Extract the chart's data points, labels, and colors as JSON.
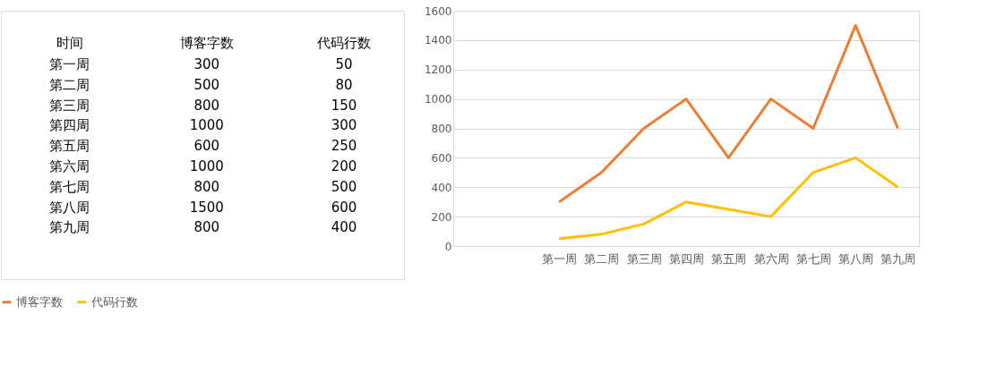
{
  "chart_data": [
    {
      "type": "other",
      "annotations": [
        "时间"
      ],
      "categories": [
        "第一周",
        "第二周",
        "第三周",
        "第四周",
        "第五周",
        "第六周",
        "第七周",
        "第八周",
        "第九周"
      ],
      "series": [
        {
          "name": "博客字数",
          "values": [
            300,
            500,
            800,
            1000,
            600,
            1000,
            800,
            1500,
            800
          ]
        },
        {
          "name": "代码行数",
          "values": [
            50,
            80,
            150,
            300,
            250,
            200,
            500,
            600,
            400
          ]
        }
      ],
      "data_labels": true
    },
    {
      "type": "line",
      "categories": [
        null,
        null,
        "第一周",
        "第二周",
        "第三周",
        "第四周",
        "第五周",
        "第六周",
        "第七周",
        "第八周",
        "第九周"
      ],
      "series": [
        {
          "name": "博客字数",
          "color": "#ed7d31",
          "values": [
            null,
            null,
            300,
            500,
            800,
            1000,
            600,
            1000,
            800,
            1500,
            800
          ]
        },
        {
          "name": "代码行数",
          "color": "#ffc000",
          "values": [
            null,
            null,
            50,
            80,
            150,
            300,
            250,
            200,
            500,
            600,
            400
          ]
        }
      ],
      "ylim": [
        0,
        1600
      ],
      "yticks": [
        0,
        200,
        400,
        600,
        800,
        1000,
        1200,
        1400,
        1600
      ],
      "grid": "y",
      "legend": "bottom",
      "marker": "none",
      "line_style": "solid"
    }
  ]
}
